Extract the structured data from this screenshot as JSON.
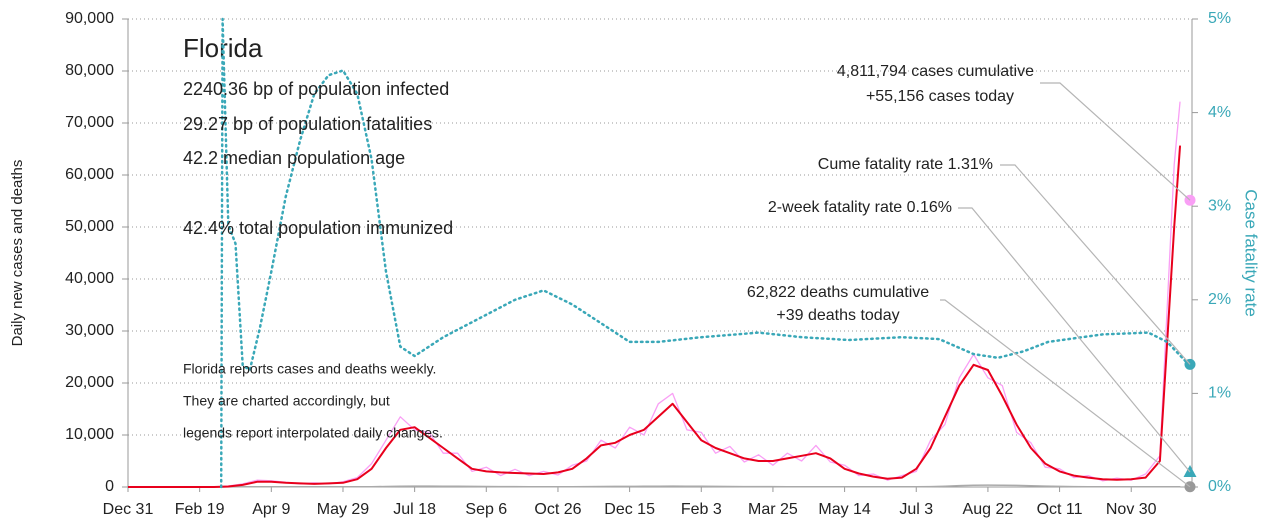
{
  "chart_data": {
    "type": "line",
    "panel": {
      "title": "Florida",
      "lines": [
        "2240.36 bp of population infected",
        "29.27 bp of population fatalities",
        "42.2 median population age",
        "42.4% total population immunized"
      ]
    },
    "note": [
      "Florida reports cases and deaths weekly.",
      "They are charted accordingly, but",
      "legends report interpolated daily changes."
    ],
    "y_label": "Daily new cases and deaths",
    "y2_label": "Case fatality rate",
    "xlim": [
      0,
      741
    ],
    "xticks": [
      {
        "value": 0,
        "label": "Dec 31"
      },
      {
        "value": 50,
        "label": "Feb 19"
      },
      {
        "value": 100,
        "label": "Apr 9"
      },
      {
        "value": 150,
        "label": "May 29"
      },
      {
        "value": 200,
        "label": "Jul 18"
      },
      {
        "value": 250,
        "label": "Sep 6"
      },
      {
        "value": 300,
        "label": "Oct 26"
      },
      {
        "value": 350,
        "label": "Dec 15"
      },
      {
        "value": 400,
        "label": "Feb 3"
      },
      {
        "value": 450,
        "label": "Mar 25"
      },
      {
        "value": 500,
        "label": "May 14"
      },
      {
        "value": 550,
        "label": "Jul 3"
      },
      {
        "value": 600,
        "label": "Aug 22"
      },
      {
        "value": 650,
        "label": "Oct 11"
      },
      {
        "value": 700,
        "label": "Nov 30"
      }
    ],
    "ylim": [
      0,
      90000
    ],
    "yticks": [
      0,
      {
        "value": 10000,
        "label": "10,000"
      },
      {
        "value": 20000,
        "label": "20,000"
      },
      {
        "value": 30000,
        "label": "30,000"
      },
      {
        "value": 40000,
        "label": "40,000"
      },
      {
        "value": 50000,
        "label": "50,000"
      },
      {
        "value": 60000,
        "label": "60,000"
      },
      {
        "value": 70000,
        "label": "70,000"
      },
      {
        "value": 80000,
        "label": "80,000"
      },
      {
        "value": 90000,
        "label": "90,000"
      }
    ],
    "y2lim": [
      0,
      5
    ],
    "y2ticks": [
      {
        "value": 0,
        "label": "0%"
      },
      {
        "value": 1,
        "label": "1%"
      },
      {
        "value": 2,
        "label": "2%"
      },
      {
        "value": 3,
        "label": "3%"
      },
      {
        "value": 4,
        "label": "4%"
      },
      {
        "value": 5,
        "label": "5%"
      }
    ],
    "grid": true,
    "x": [
      0,
      10,
      20,
      30,
      40,
      50,
      60,
      70,
      80,
      90,
      100,
      110,
      120,
      130,
      140,
      150,
      160,
      170,
      180,
      190,
      200,
      210,
      220,
      230,
      240,
      250,
      260,
      270,
      280,
      290,
      300,
      310,
      320,
      330,
      340,
      350,
      360,
      370,
      380,
      390,
      400,
      410,
      420,
      430,
      440,
      450,
      460,
      470,
      480,
      490,
      500,
      510,
      520,
      530,
      540,
      550,
      560,
      570,
      580,
      590,
      600,
      610,
      620,
      630,
      640,
      650,
      660,
      670,
      680,
      690,
      700,
      710,
      720,
      730,
      734
    ],
    "series": [
      {
        "color": "#f99ff5",
        "width": 1.3,
        "values": [
          0,
          0,
          0,
          0,
          0,
          0,
          0,
          200,
          600,
          1300,
          1200,
          900,
          600,
          800,
          600,
          1000,
          1800,
          4500,
          9000,
          13500,
          11000,
          10500,
          6500,
          6500,
          3000,
          3800,
          2200,
          3400,
          2200,
          3000,
          2300,
          4200,
          5000,
          9000,
          7500,
          11500,
          10000,
          16000,
          18000,
          11000,
          10500,
          6500,
          7800,
          4800,
          6200,
          4200,
          6500,
          5000,
          8000,
          4800,
          4200,
          2200,
          2500,
          1300,
          2200,
          3000,
          9000,
          12000,
          21000,
          25500,
          21000,
          19500,
          10500,
          8500,
          3800,
          3500,
          1800,
          2200,
          1200,
          1700,
          1300,
          2500,
          6000,
          62000,
          74000
        ]
      },
      {
        "color": "#aaaaaa",
        "width": 1.5,
        "values": [
          0,
          0,
          0,
          0,
          0,
          0,
          0,
          10,
          40,
          50,
          50,
          40,
          40,
          40,
          40,
          40,
          40,
          60,
          100,
          150,
          170,
          180,
          160,
          130,
          110,
          90,
          80,
          70,
          60,
          60,
          60,
          60,
          70,
          90,
          110,
          120,
          140,
          160,
          170,
          160,
          140,
          120,
          100,
          80,
          70,
          70,
          60,
          60,
          60,
          60,
          50,
          40,
          30,
          30,
          30,
          40,
          80,
          160,
          260,
          330,
          360,
          340,
          300,
          240,
          170,
          110,
          70,
          50,
          40,
          30,
          30,
          30,
          30,
          40,
          40
        ]
      },
      {
        "color": "#e8001c",
        "width": 2,
        "values": [
          0,
          0,
          0,
          0,
          0,
          0,
          0,
          100,
          400,
          1000,
          1000,
          800,
          700,
          600,
          700,
          800,
          1500,
          3500,
          7500,
          11000,
          11500,
          9500,
          7500,
          5500,
          3500,
          3000,
          2800,
          2700,
          2600,
          2500,
          2800,
          3500,
          5500,
          8000,
          8500,
          10000,
          11000,
          13500,
          16000,
          12500,
          9000,
          7500,
          6500,
          5500,
          5000,
          5000,
          5500,
          6000,
          6500,
          5500,
          3500,
          2600,
          2000,
          1600,
          1800,
          3500,
          7500,
          13500,
          19500,
          23500,
          22500,
          17500,
          12000,
          7500,
          4500,
          3000,
          2200,
          1800,
          1500,
          1400,
          1500,
          1800,
          5000,
          50000,
          65500
        ]
      },
      {
        "color": "#3aa8b8",
        "width": 2.5,
        "style": "dotted",
        "axis": "y2",
        "x": [
          65,
          66,
          70,
          75,
          80,
          85,
          92,
          100,
          110,
          120,
          130,
          140,
          150,
          160,
          170,
          180,
          190,
          200,
          220,
          245,
          270,
          290,
          310,
          330,
          350,
          370,
          400,
          440,
          470,
          503,
          540,
          566,
          590,
          607,
          625,
          642,
          680,
          712,
          725,
          740
        ],
        "values": [
          0,
          5,
          2.8,
          2.6,
          1.3,
          1.25,
          1.7,
          2.3,
          3.1,
          3.7,
          4.2,
          4.4,
          4.45,
          4.2,
          3.5,
          2.3,
          1.5,
          1.4,
          1.6,
          1.8,
          2.0,
          2.1,
          1.95,
          1.75,
          1.55,
          1.55,
          1.6,
          1.65,
          1.6,
          1.57,
          1.6,
          1.58,
          1.42,
          1.38,
          1.45,
          1.55,
          1.63,
          1.65,
          1.55,
          1.31
        ]
      }
    ],
    "markers": [
      {
        "value": 55156,
        "color": "#f99ff5",
        "shape": "circle"
      },
      {
        "value": 1.31,
        "axis": "y2",
        "color": "#3aa8b8",
        "shape": "circle"
      },
      {
        "value": 0.16,
        "axis": "y2",
        "color": "#3aa8b8",
        "shape": "triangle"
      },
      {
        "value": 39,
        "color": "#999999",
        "shape": "circle"
      }
    ],
    "annotations": [
      {
        "lines": [
          "4,811,794 cases cumulative",
          "+55,156 cases today"
        ]
      },
      {
        "lines": [
          "Cume fatality rate 1.31%"
        ]
      },
      {
        "lines": [
          "2-week fatality rate 0.16%"
        ]
      },
      {
        "lines": [
          "62,822 deaths cumulative",
          "+39 deaths today"
        ]
      }
    ]
  }
}
